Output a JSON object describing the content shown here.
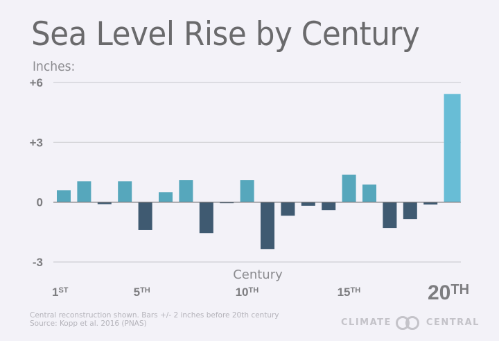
{
  "header": {
    "title": "Sea Level Rise by Century",
    "unit_label": "Inches:"
  },
  "footer": {
    "note": "Central reconstruction shown. Bars +/- 2 inches before 20th century",
    "source": "Source: Kopp et al. 2016 (PNAS)",
    "logo_left": "CLIMATE",
    "logo_right": "CENTRAL"
  },
  "colors": {
    "positive": "#56a7bc",
    "negative": "#3f5a71",
    "highlight": "#68bdd6",
    "grid": "#cfcfd4",
    "baseline": "#7d7d80"
  },
  "chart_data": {
    "type": "bar",
    "title": "Sea Level Rise by Century",
    "xlabel": "Century",
    "ylabel": "Inches:",
    "ylim": [
      -3,
      6
    ],
    "yticks": [
      {
        "value": 6,
        "label": "+6"
      },
      {
        "value": 3,
        "label": "+3"
      },
      {
        "value": 0,
        "label": "0"
      },
      {
        "value": -3,
        "label": "-3"
      }
    ],
    "grid": true,
    "categories": [
      "1",
      "2",
      "3",
      "4",
      "5",
      "6",
      "7",
      "8",
      "9",
      "10",
      "11",
      "12",
      "13",
      "14",
      "15",
      "16",
      "17",
      "18",
      "19",
      "20"
    ],
    "xtick_labels": [
      {
        "index": 0,
        "num": "1",
        "suffix": "ST",
        "size": "small"
      },
      {
        "index": 4,
        "num": "5",
        "suffix": "TH",
        "size": "small"
      },
      {
        "index": 9,
        "num": "10",
        "suffix": "TH",
        "size": "small"
      },
      {
        "index": 14,
        "num": "15",
        "suffix": "TH",
        "size": "small"
      },
      {
        "index": 19,
        "num": "20",
        "suffix": "TH",
        "size": "large"
      }
    ],
    "values": [
      0.6,
      1.05,
      -0.1,
      1.05,
      -1.4,
      0.5,
      1.1,
      -1.55,
      -0.05,
      1.1,
      -2.35,
      -0.68,
      -0.18,
      -0.4,
      1.38,
      0.88,
      -1.3,
      -0.85,
      -0.12,
      5.42
    ],
    "highlight_index": 19
  }
}
